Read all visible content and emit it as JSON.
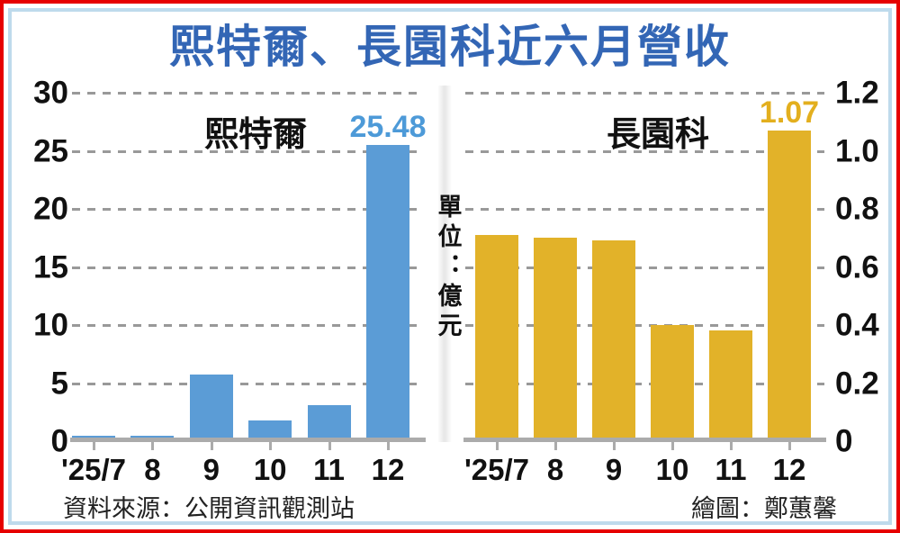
{
  "header": {
    "title": "熙特爾、長園科近六月營收",
    "title_color": "#3366B5"
  },
  "unit_label": "單位：億元",
  "footer": {
    "source": "資料來源：公開資訊觀測站",
    "illustrator": "繪圖：鄭蕙馨"
  },
  "frame_colors": {
    "outer_border": "#E60000",
    "inner_border": "#BEDAEC"
  },
  "chart_data": [
    {
      "type": "bar",
      "title": "熙特爾",
      "categories": [
        "'25/7",
        "8",
        "9",
        "10",
        "11",
        "12"
      ],
      "values": [
        0.5,
        0.5,
        5.7,
        1.8,
        3.1,
        25.48
      ],
      "ylim": [
        0,
        30
      ],
      "yticks": [
        0,
        5,
        10,
        15,
        20,
        25,
        30
      ],
      "ytick_labels": [
        "0",
        "5",
        "10",
        "15",
        "20",
        "25",
        "30"
      ],
      "axis_side": "left",
      "grid": "dashed",
      "bar_color": "#5B9CD6",
      "value_label": {
        "text": "25.48",
        "index": 5,
        "color": "#4D9AD8"
      }
    },
    {
      "type": "bar",
      "title": "長園科",
      "categories": [
        "'25/7",
        "8",
        "9",
        "10",
        "11",
        "12"
      ],
      "values": [
        0.71,
        0.7,
        0.69,
        0.4,
        0.38,
        1.07
      ],
      "ylim": [
        0,
        1.2
      ],
      "yticks": [
        0,
        0.2,
        0.4,
        0.6,
        0.8,
        1.0,
        1.2
      ],
      "ytick_labels": [
        "0",
        "0.2",
        "0.4",
        "0.6",
        "0.8",
        "1.0",
        "1.2"
      ],
      "axis_side": "right",
      "grid": "dashed",
      "bar_color": "#E2B229",
      "value_label": {
        "text": "1.07",
        "index": 5,
        "color": "#E3AF1E"
      }
    }
  ]
}
